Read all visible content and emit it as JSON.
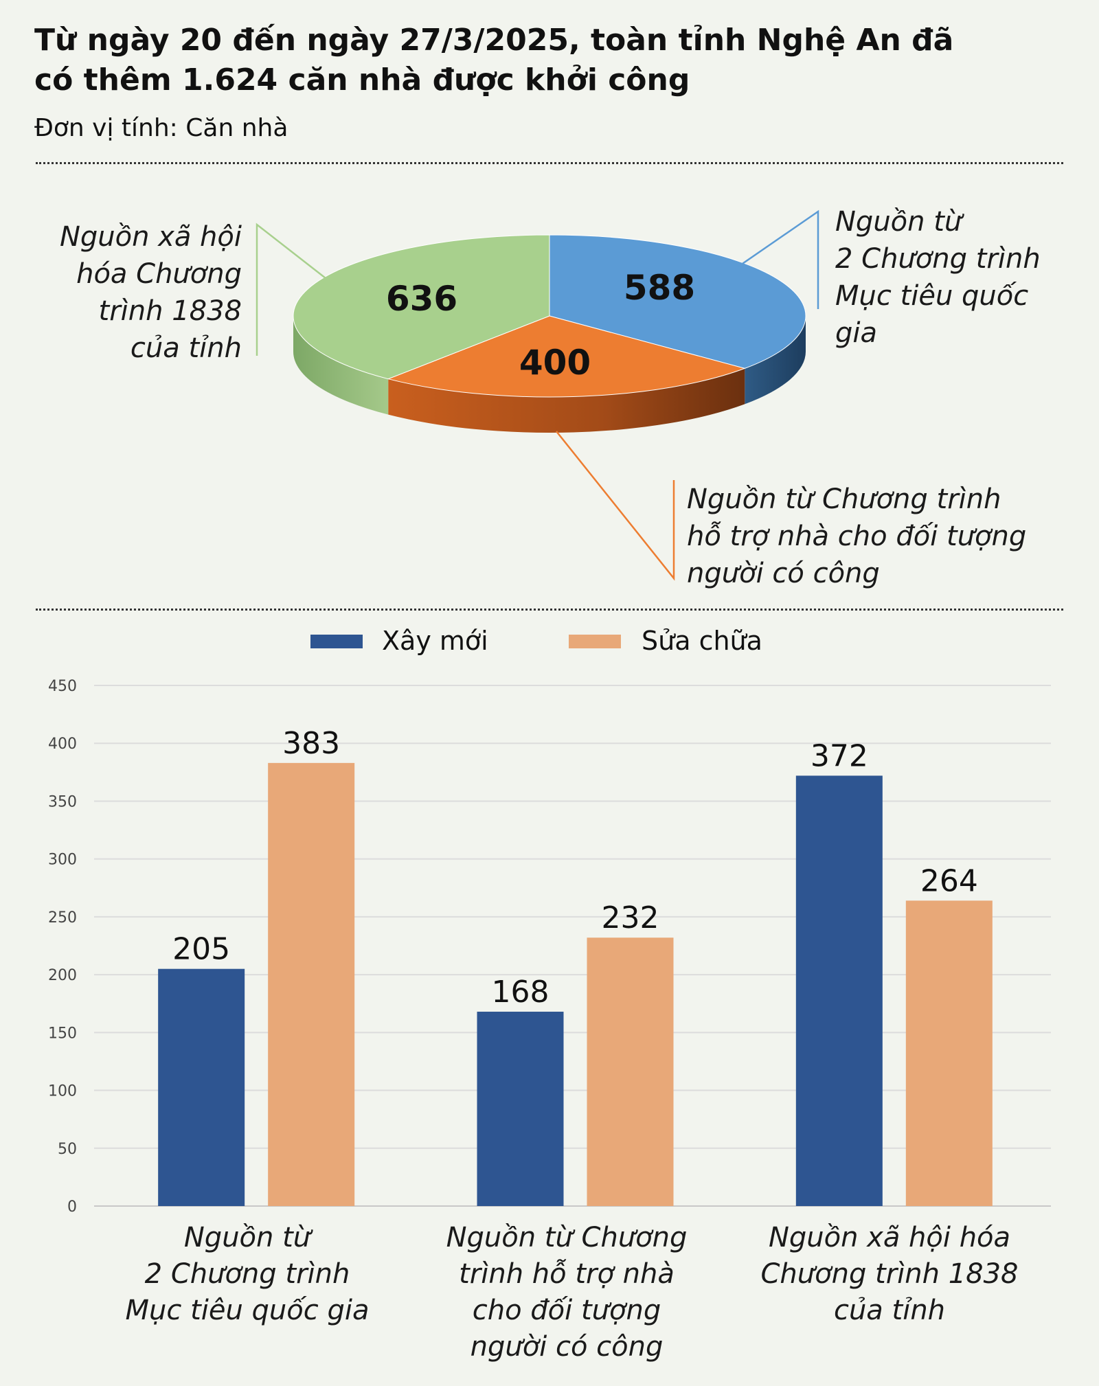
{
  "title": "Từ ngày 20 đến ngày 27/3/2025, toàn tỉnh Nghệ An đã có thêm 1.624 căn nhà được khởi công",
  "unit_label": "Đơn vị tính: Căn nhà",
  "colors": {
    "green": "#a8d08d",
    "blue": "#5b9bd5",
    "orange": "#ed7d31",
    "xay_moi": "#2e5591",
    "sua_chua": "#e8a878"
  },
  "chart_data": [
    {
      "type": "pie",
      "slices": [
        {
          "label": "Nguồn từ\n2 Chương trình\nMục tiêu quốc\ngia",
          "value": 588
        },
        {
          "label": "Nguồn từ Chương trình\nhỗ trợ nhà cho đối tượng\nngười có công",
          "value": 400
        },
        {
          "label": "Nguồn xã hội\nhóa Chương\ntrình 1838\ncủa tỉnh",
          "value": 636
        }
      ],
      "style": "3d"
    },
    {
      "type": "bar",
      "categories": [
        "Nguồn từ\n2 Chương trình\nMục tiêu quốc gia",
        "Nguồn từ Chương\ntrình hỗ trợ nhà\ncho đối tượng\nngười có công",
        "Nguồn xã hội hóa\nChương trình 1838\ncủa tỉnh"
      ],
      "series": [
        {
          "name": "Xây mới",
          "values": [
            205,
            168,
            372
          ]
        },
        {
          "name": "Sửa chữa",
          "values": [
            383,
            232,
            264
          ]
        }
      ],
      "ylim": [
        0,
        450
      ],
      "yticks": [
        0,
        50,
        100,
        150,
        200,
        250,
        300,
        350,
        400,
        450
      ],
      "grid": true,
      "legend": "top-center"
    }
  ]
}
